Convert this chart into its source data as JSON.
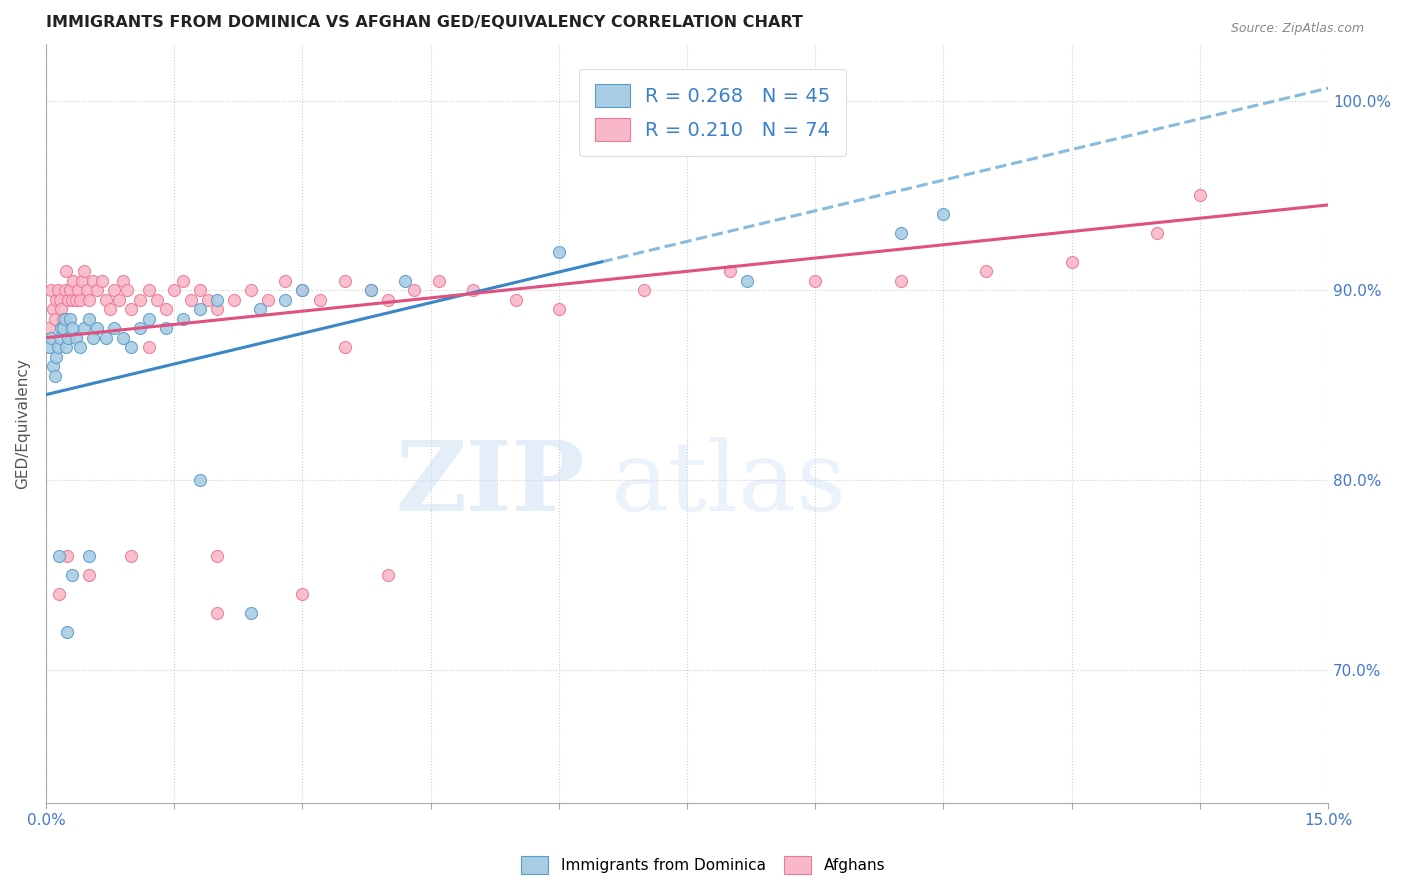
{
  "title": "IMMIGRANTS FROM DOMINICA VS AFGHAN GED/EQUIVALENCY CORRELATION CHART",
  "source": "Source: ZipAtlas.com",
  "ylabel": "GED/Equivalency",
  "xlim": [
    0.0,
    0.15
  ],
  "ylim": [
    0.63,
    1.03
  ],
  "ytick_positions": [
    0.7,
    0.8,
    0.9,
    1.0
  ],
  "ytick_labels": [
    "70.0%",
    "80.0%",
    "90.0%",
    "100.0%"
  ],
  "legend_blue_text": "R = 0.268   N = 45",
  "legend_pink_text": "R = 0.210   N = 74",
  "blue_scatter_color": "#a8cce4",
  "blue_scatter_edge": "#5b9dc9",
  "pink_scatter_color": "#f9b8c8",
  "pink_scatter_edge": "#e87a96",
  "blue_line_color": "#3a87c8",
  "blue_dashed_color": "#88bbdd",
  "pink_line_color": "#e05080",
  "dominica_x": [
    0.0004,
    0.0006,
    0.0008,
    0.001,
    0.0012,
    0.0014,
    0.0016,
    0.0018,
    0.002,
    0.0022,
    0.0024,
    0.0026,
    0.0028,
    0.003,
    0.0035,
    0.004,
    0.0045,
    0.005,
    0.0055,
    0.006,
    0.007,
    0.008,
    0.009,
    0.01,
    0.011,
    0.012,
    0.014,
    0.016,
    0.018,
    0.02,
    0.025,
    0.028,
    0.03,
    0.038,
    0.042,
    0.06,
    0.082,
    0.1,
    0.105,
    0.0015,
    0.0025,
    0.003,
    0.005,
    0.018,
    0.024
  ],
  "dominica_y": [
    0.87,
    0.875,
    0.86,
    0.855,
    0.865,
    0.87,
    0.875,
    0.88,
    0.88,
    0.885,
    0.87,
    0.875,
    0.885,
    0.88,
    0.875,
    0.87,
    0.88,
    0.885,
    0.875,
    0.88,
    0.875,
    0.88,
    0.875,
    0.87,
    0.88,
    0.885,
    0.88,
    0.885,
    0.89,
    0.895,
    0.89,
    0.895,
    0.9,
    0.9,
    0.905,
    0.92,
    0.905,
    0.93,
    0.94,
    0.76,
    0.72,
    0.75,
    0.76,
    0.8,
    0.73
  ],
  "afghan_x": [
    0.0004,
    0.0006,
    0.0008,
    0.001,
    0.0012,
    0.0014,
    0.0016,
    0.0018,
    0.002,
    0.0022,
    0.0024,
    0.0026,
    0.0028,
    0.003,
    0.0032,
    0.0035,
    0.0038,
    0.004,
    0.0042,
    0.0045,
    0.0048,
    0.005,
    0.0055,
    0.006,
    0.0065,
    0.007,
    0.0075,
    0.008,
    0.0085,
    0.009,
    0.0095,
    0.01,
    0.011,
    0.012,
    0.013,
    0.014,
    0.015,
    0.016,
    0.017,
    0.018,
    0.019,
    0.02,
    0.022,
    0.024,
    0.026,
    0.028,
    0.03,
    0.032,
    0.035,
    0.038,
    0.04,
    0.043,
    0.046,
    0.05,
    0.055,
    0.06,
    0.07,
    0.08,
    0.09,
    0.1,
    0.11,
    0.12,
    0.13,
    0.135,
    0.0015,
    0.0025,
    0.005,
    0.01,
    0.02,
    0.03,
    0.04,
    0.02,
    0.012,
    0.035
  ],
  "afghan_y": [
    0.88,
    0.9,
    0.89,
    0.885,
    0.895,
    0.9,
    0.895,
    0.89,
    0.885,
    0.9,
    0.91,
    0.895,
    0.9,
    0.895,
    0.905,
    0.895,
    0.9,
    0.895,
    0.905,
    0.91,
    0.9,
    0.895,
    0.905,
    0.9,
    0.905,
    0.895,
    0.89,
    0.9,
    0.895,
    0.905,
    0.9,
    0.89,
    0.895,
    0.9,
    0.895,
    0.89,
    0.9,
    0.905,
    0.895,
    0.9,
    0.895,
    0.89,
    0.895,
    0.9,
    0.895,
    0.905,
    0.9,
    0.895,
    0.905,
    0.9,
    0.895,
    0.9,
    0.905,
    0.9,
    0.895,
    0.89,
    0.9,
    0.91,
    0.905,
    0.905,
    0.91,
    0.915,
    0.93,
    0.95,
    0.74,
    0.76,
    0.75,
    0.76,
    0.76,
    0.74,
    0.75,
    0.73,
    0.87,
    0.87
  ]
}
